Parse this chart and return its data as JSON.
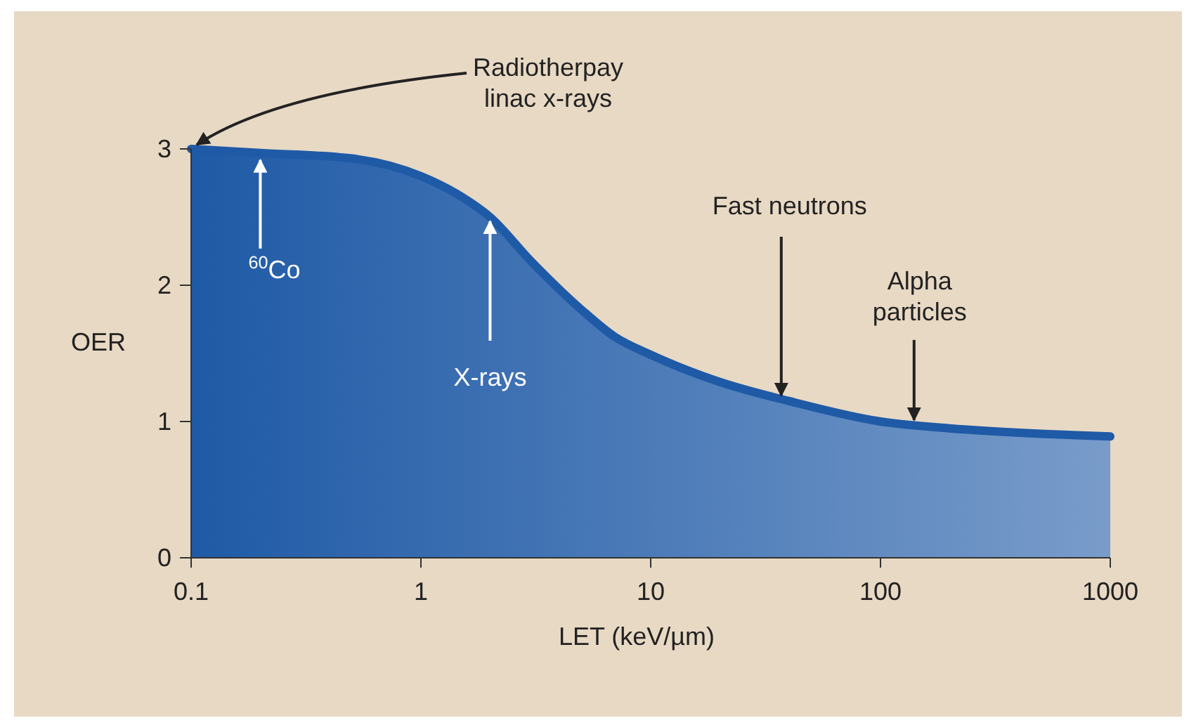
{
  "chart_data": {
    "type": "area",
    "xlabel": "LET (keV/µm)",
    "ylabel": "OER",
    "log": "x",
    "x": [
      0.1,
      0.2,
      0.5,
      1,
      1.5,
      2,
      3,
      5,
      7,
      10,
      20,
      40,
      100,
      200,
      500,
      1000
    ],
    "series": [
      {
        "color": "#1f5aa6",
        "values": [
          3.0,
          2.97,
          2.93,
          2.8,
          2.65,
          2.5,
          2.18,
          1.82,
          1.62,
          1.49,
          1.29,
          1.15,
          1.0,
          0.95,
          0.91,
          0.89
        ]
      }
    ],
    "xlim": [
      0.1,
      1000
    ],
    "xticks": [
      0.1,
      1,
      10,
      100,
      1000
    ],
    "ylim": [
      0,
      3
    ],
    "yticks": [
      0,
      1,
      2,
      3
    ],
    "grid": false,
    "annotations": [
      {
        "text": "Radiotherpay\nlinac x-rays",
        "x": 0.1,
        "y": 3.0
      },
      {
        "text": "$^{60}$Co",
        "x": 0.2,
        "y": 2.97
      },
      {
        "text": "X-rays",
        "x": 2,
        "y": 2.5
      },
      {
        "text": "Fast neutrons",
        "x": 37,
        "y": 1.16
      },
      {
        "text": "Alpha\nparticles",
        "x": 140,
        "y": 0.98
      }
    ]
  }
}
